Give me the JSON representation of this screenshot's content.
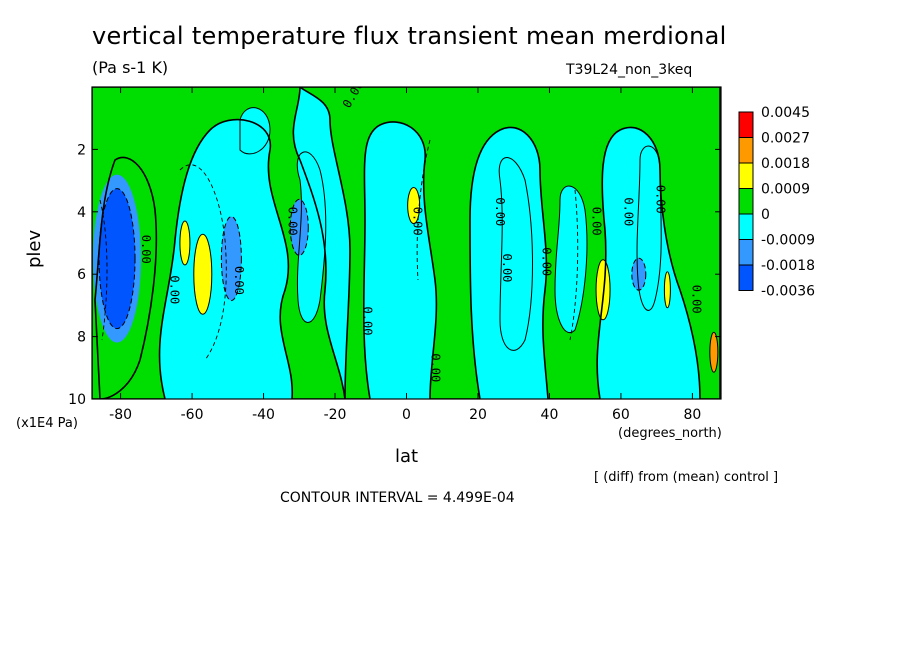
{
  "chart_data": {
    "type": "heatmap",
    "title": "vertical temperature flux transient mean merdional",
    "units": "(Pa s-1 K)",
    "run_label": "T39L24_non_3keq",
    "xlabel": "lat",
    "x_units": "(degrees_north)",
    "ylabel": "plev",
    "y_units": "(x1E4 Pa)",
    "xlim": [
      -88,
      88
    ],
    "ylim": [
      0,
      10
    ],
    "y_inverted": true,
    "x_ticks": [
      -80,
      -60,
      -40,
      -20,
      0,
      20,
      40,
      60,
      80
    ],
    "x_tick_labels": [
      "-80",
      "-60",
      "-40",
      "-20",
      "0",
      "20",
      "40",
      "60",
      "80"
    ],
    "y_ticks": [
      2,
      4,
      6,
      8,
      10
    ],
    "y_tick_labels": [
      "2",
      "4",
      "6",
      "8",
      "10"
    ],
    "note": "[ (diff) from (mean) control ]",
    "contour_interval_text": "CONTOUR INTERVAL = 4.499E-04",
    "contour_label_text": "0.00",
    "legend": {
      "placement": "right",
      "labels": [
        "0.0045",
        "0.0027",
        "0.0018",
        "0.0009",
        "0",
        "-0.0009",
        "-0.0018",
        "-0.0036"
      ],
      "colors": [
        "#ff0000",
        "#ff9900",
        "#ffff00",
        "#00dd00",
        "#00ffff",
        "#3399ff",
        "#0055ff"
      ]
    },
    "colors": {
      "positive_strong": "#ff0000",
      "positive_mid": "#ff9900",
      "positive_weak": "#ffff00",
      "near_zero_pos": "#00dd00",
      "near_zero_neg": "#00ffff",
      "negative_mid": "#3399ff",
      "negative_strong": "#0055ff"
    },
    "extrema": [
      {
        "lat": -81,
        "plev": 5.5,
        "value": -0.0036
      },
      {
        "lat": -57,
        "plev": 6.0,
        "value": 0.0018
      },
      {
        "lat": -62,
        "plev": 5.0,
        "value": 0.0009
      },
      {
        "lat": -49,
        "plev": 5.5,
        "value": -0.0018
      },
      {
        "lat": -30,
        "plev": 4.5,
        "value": -0.0018
      },
      {
        "lat": 2,
        "plev": 3.8,
        "value": 0.0018
      },
      {
        "lat": 55,
        "plev": 6.5,
        "value": 0.0018
      },
      {
        "lat": 65,
        "plev": 6.0,
        "value": -0.0018
      },
      {
        "lat": 73,
        "plev": 6.5,
        "value": 0.0018
      },
      {
        "lat": 86,
        "plev": 8.5,
        "value": 0.0027
      }
    ]
  }
}
